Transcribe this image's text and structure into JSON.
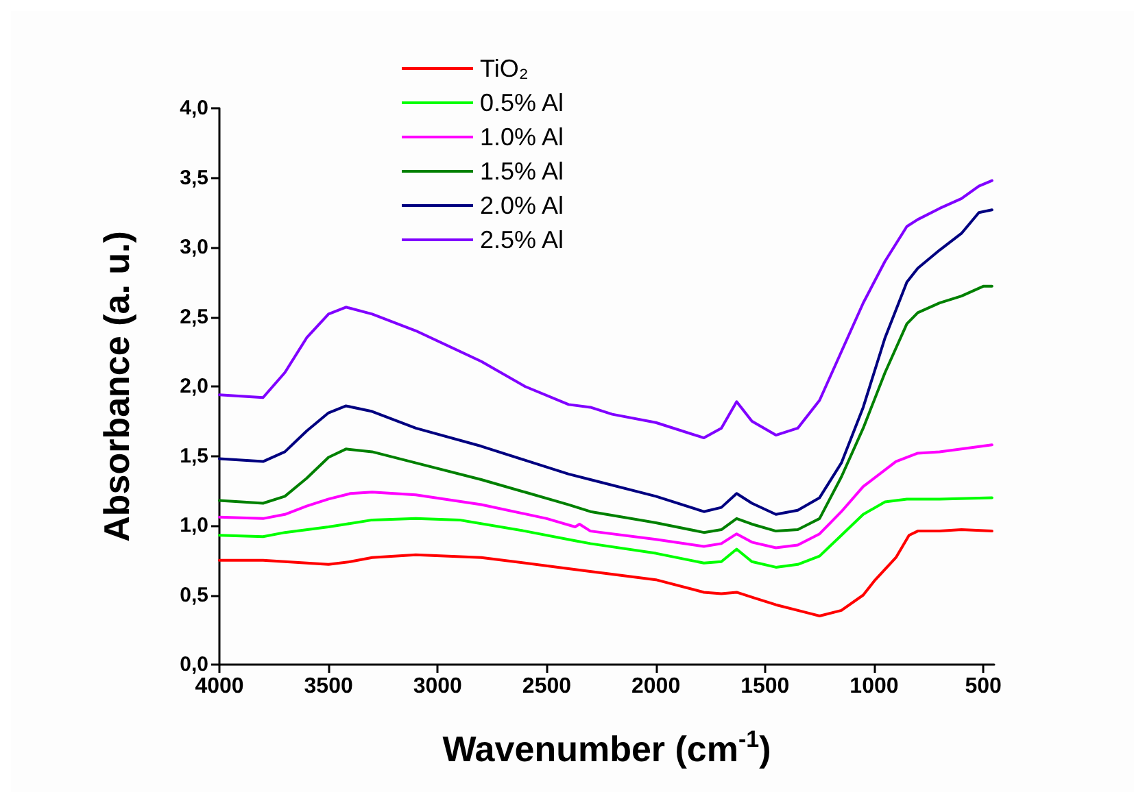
{
  "chart_data": {
    "type": "line",
    "xlabel": "Wavenumber (cm$^{-1}$)",
    "ylabel": "Absorbance (a. u.)",
    "xlim": [
      4000,
      450
    ],
    "ylim": [
      0,
      4
    ],
    "xticks": [
      4000,
      3500,
      3000,
      2500,
      2000,
      1500,
      1000,
      500
    ],
    "yticks": [
      {
        "value": 0,
        "label": "0,0"
      },
      {
        "value": 0.5,
        "label": "0,5"
      },
      {
        "value": 1,
        "label": "1,0"
      },
      {
        "value": 1.5,
        "label": "1,5"
      },
      {
        "value": 2,
        "label": "2,0"
      },
      {
        "value": 2.5,
        "label": "2,5"
      },
      {
        "value": 3,
        "label": "3,0"
      },
      {
        "value": 3.5,
        "label": "3,5"
      },
      {
        "value": 4,
        "label": "4,0"
      }
    ],
    "grid": false,
    "legend": "top",
    "marker": "none",
    "line_style": "solid",
    "series": [
      {
        "name": "TiO₂",
        "color": "#ff0000",
        "x": [
          4000,
          3800,
          3600,
          3500,
          3400,
          3300,
          3100,
          2800,
          2400,
          2000,
          1780,
          1700,
          1630,
          1550,
          1450,
          1300,
          1250,
          1150,
          1050,
          1000,
          900,
          840,
          800,
          700,
          600,
          460
        ],
        "values": [
          0.75,
          0.75,
          0.73,
          0.72,
          0.74,
          0.77,
          0.79,
          0.77,
          0.69,
          0.61,
          0.52,
          0.51,
          0.52,
          0.48,
          0.43,
          0.37,
          0.35,
          0.39,
          0.5,
          0.6,
          0.77,
          0.93,
          0.96,
          0.96,
          0.97,
          0.96
        ]
      },
      {
        "name": "0.5% Al",
        "color": "#00ff00",
        "x": [
          4000,
          3800,
          3700,
          3500,
          3420,
          3300,
          3100,
          2900,
          2600,
          2370,
          2300,
          2000,
          1780,
          1700,
          1630,
          1560,
          1450,
          1350,
          1250,
          1150,
          1050,
          950,
          850,
          700,
          460
        ],
        "values": [
          0.93,
          0.92,
          0.95,
          0.99,
          1.01,
          1.04,
          1.05,
          1.04,
          0.96,
          0.89,
          0.87,
          0.8,
          0.73,
          0.74,
          0.83,
          0.74,
          0.7,
          0.72,
          0.78,
          0.93,
          1.08,
          1.17,
          1.19,
          1.19,
          1.2
        ]
      },
      {
        "name": "1.0% Al",
        "color": "#ff00ff",
        "x": [
          4000,
          3800,
          3700,
          3600,
          3500,
          3400,
          3300,
          3100,
          2800,
          2500,
          2370,
          2350,
          2300,
          2000,
          1780,
          1700,
          1630,
          1560,
          1450,
          1350,
          1250,
          1150,
          1050,
          900,
          800,
          700,
          600,
          460
        ],
        "values": [
          1.06,
          1.05,
          1.08,
          1.14,
          1.19,
          1.23,
          1.24,
          1.22,
          1.15,
          1.05,
          0.99,
          1.01,
          0.96,
          0.9,
          0.85,
          0.87,
          0.94,
          0.88,
          0.84,
          0.86,
          0.94,
          1.1,
          1.28,
          1.46,
          1.52,
          1.53,
          1.55,
          1.58
        ]
      },
      {
        "name": "1.5% Al",
        "color": "#008000",
        "x": [
          4000,
          3800,
          3700,
          3600,
          3500,
          3420,
          3300,
          3100,
          2800,
          2600,
          2400,
          2300,
          2000,
          1780,
          1700,
          1630,
          1560,
          1450,
          1350,
          1250,
          1150,
          1050,
          950,
          850,
          800,
          700,
          600,
          500,
          460
        ],
        "values": [
          1.18,
          1.16,
          1.21,
          1.34,
          1.49,
          1.55,
          1.53,
          1.45,
          1.33,
          1.24,
          1.15,
          1.1,
          1.02,
          0.95,
          0.97,
          1.05,
          1.01,
          0.96,
          0.97,
          1.05,
          1.35,
          1.7,
          2.1,
          2.45,
          2.53,
          2.6,
          2.65,
          2.72,
          2.72
        ]
      },
      {
        "name": "2.0% Al",
        "color": "#000080",
        "x": [
          4000,
          3800,
          3700,
          3600,
          3500,
          3420,
          3300,
          3100,
          2800,
          2600,
          2400,
          2300,
          2000,
          1780,
          1700,
          1630,
          1560,
          1450,
          1350,
          1250,
          1150,
          1050,
          950,
          850,
          800,
          700,
          600,
          520,
          460
        ],
        "values": [
          1.48,
          1.46,
          1.53,
          1.68,
          1.81,
          1.86,
          1.82,
          1.7,
          1.57,
          1.47,
          1.37,
          1.33,
          1.21,
          1.1,
          1.13,
          1.23,
          1.16,
          1.08,
          1.11,
          1.2,
          1.45,
          1.85,
          2.35,
          2.75,
          2.85,
          2.98,
          3.1,
          3.25,
          3.27
        ]
      },
      {
        "name": "2.5% Al",
        "color": "#8000ff",
        "x": [
          4000,
          3800,
          3700,
          3600,
          3500,
          3420,
          3300,
          3100,
          2800,
          2600,
          2400,
          2300,
          2200,
          2000,
          1780,
          1700,
          1630,
          1560,
          1450,
          1350,
          1250,
          1150,
          1050,
          950,
          850,
          800,
          700,
          600,
          520,
          460
        ],
        "values": [
          1.94,
          1.92,
          2.1,
          2.35,
          2.52,
          2.57,
          2.52,
          2.4,
          2.18,
          2.0,
          1.87,
          1.85,
          1.8,
          1.74,
          1.63,
          1.7,
          1.89,
          1.75,
          1.65,
          1.7,
          1.9,
          2.25,
          2.6,
          2.9,
          3.15,
          3.2,
          3.28,
          3.35,
          3.44,
          3.48
        ]
      }
    ]
  }
}
